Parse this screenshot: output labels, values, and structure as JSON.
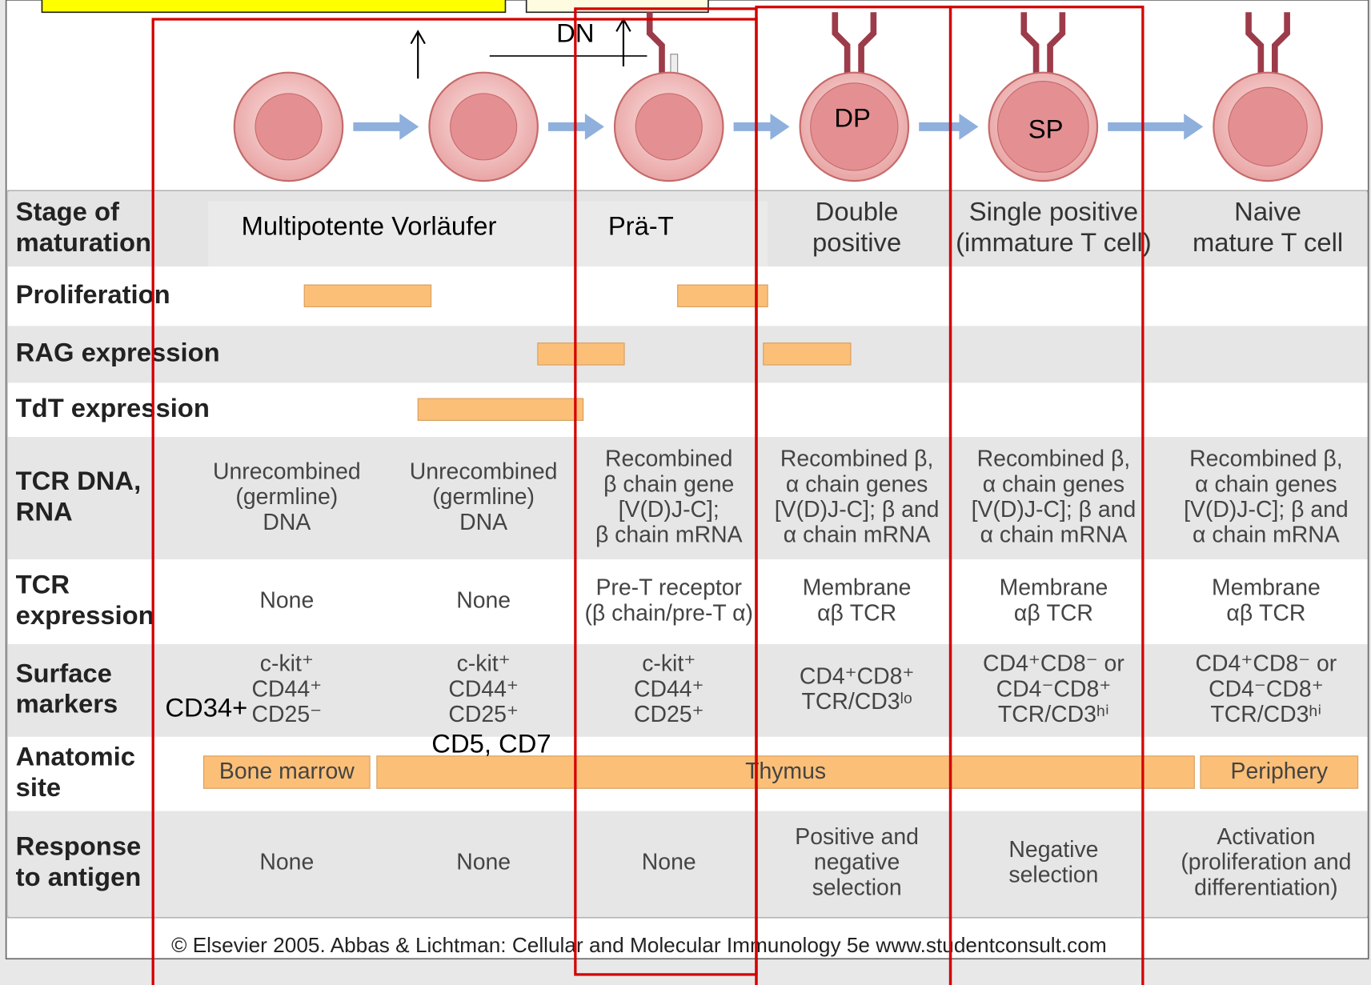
{
  "annotations": {
    "dn": "DN",
    "dp": "DP",
    "sp": "SP",
    "cd34": "CD34+",
    "cd5_cd7": "CD5, CD7",
    "multipotent": "Multipotente Vorläufer",
    "pre_t": "Prä-T"
  },
  "table": {
    "stage_label": [
      "Stage of",
      "maturation"
    ],
    "stage_headers": [
      [
        "Double",
        "positive"
      ],
      [
        "Single positive",
        "(immature T cell)"
      ],
      [
        "Naive",
        "mature T cell"
      ]
    ],
    "rows": [
      {
        "label": [
          "Proliferation"
        ]
      },
      {
        "label": [
          "RAG expression"
        ]
      },
      {
        "label": [
          "TdT expression"
        ]
      },
      {
        "label": [
          "TCR DNA,",
          "RNA"
        ],
        "cells": [
          [
            "Unrecombined",
            "(germline)",
            "DNA"
          ],
          [
            "Unrecombined",
            "(germline)",
            "DNA"
          ],
          [
            "Recombined",
            "β chain gene",
            "[V(D)J-C];",
            "β chain mRNA"
          ],
          [
            "Recombined β,",
            "α chain genes",
            "[V(D)J-C]; β and",
            "α chain mRNA"
          ],
          [
            "Recombined β,",
            "α chain genes",
            "[V(D)J-C]; β and",
            "α chain mRNA"
          ],
          [
            "Recombined β,",
            "α chain genes",
            "[V(D)J-C]; β and",
            "α chain mRNA"
          ]
        ]
      },
      {
        "label": [
          "TCR",
          "expression"
        ],
        "cells": [
          [
            "None"
          ],
          [
            "None"
          ],
          [
            "Pre-T receptor",
            "(β chain/pre-T α)"
          ],
          [
            "Membrane",
            "αβ TCR"
          ],
          [
            "Membrane",
            "αβ TCR"
          ],
          [
            "Membrane",
            "αβ TCR"
          ]
        ]
      },
      {
        "label": [
          "Surface",
          "markers"
        ],
        "cells": [
          [
            "c-kit⁺",
            "CD44⁺",
            "CD25⁻"
          ],
          [
            "c-kit⁺",
            "CD44⁺",
            "CD25⁺"
          ],
          [
            "c-kit⁺",
            "CD44⁺",
            "CD25⁺"
          ],
          [
            "CD4⁺CD8⁺",
            "TCR/CD3ˡᵒ"
          ],
          [
            "CD4⁺CD8⁻ or",
            "CD4⁻CD8⁺",
            "TCR/CD3ʰⁱ"
          ],
          [
            "CD4⁺CD8⁻ or",
            "CD4⁻CD8⁺",
            "TCR/CD3ʰⁱ"
          ]
        ]
      },
      {
        "label": [
          "Anatomic",
          "site"
        ],
        "sites": [
          "Bone marrow",
          "Thymus",
          "Periphery"
        ]
      },
      {
        "label": [
          "Response",
          "to antigen"
        ],
        "cells": [
          [
            "None"
          ],
          [
            "None"
          ],
          [
            "None"
          ],
          [
            "Positive and",
            "negative",
            "selection"
          ],
          [
            "Negative",
            "selection"
          ],
          [
            "Activation",
            "(proliferation and",
            "differentiation)"
          ]
        ]
      }
    ]
  },
  "footer": "© Elsevier 2005. Abbas & Lichtman: Cellular and Molecular Immunology 5e www.studentconsult.com"
}
